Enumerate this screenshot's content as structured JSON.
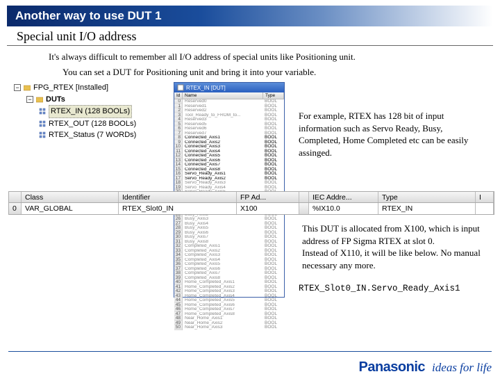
{
  "title": "Another way to use DUT 1",
  "subtitle": "Special unit I/O address",
  "intro1": "It's always difficult to remember all I/O address of special units like Positioning unit.",
  "intro2": "You can set a DUT for Positioning unit and bring it into your variable.",
  "tree": {
    "root": "FPG_RTEX [Installed]",
    "folder": "DUTs",
    "items": [
      "RTEX_IN (128 BOOLs)",
      "RTEX_OUT (128 BOOLs)",
      "RTEX_Status (7 WORDs)"
    ]
  },
  "rtex_window": {
    "title": "RTEX_IN [DUT]",
    "headers": {
      "id": "Id",
      "name": "Name",
      "type": "Type"
    },
    "rows": [
      {
        "n": 0,
        "name": "Reserved0",
        "type": "BOOL",
        "a": 0
      },
      {
        "n": 1,
        "name": "Reserved1",
        "type": "BOOL",
        "a": 0
      },
      {
        "n": 2,
        "name": "Reserved2",
        "type": "BOOL",
        "a": 0
      },
      {
        "n": 3,
        "name": "Tool_Ready_to_FROM_to...",
        "type": "BOOL",
        "a": 0
      },
      {
        "n": 4,
        "name": "Reserved3",
        "type": "BOOL",
        "a": 0
      },
      {
        "n": 5,
        "name": "Reserved5",
        "type": "BOOL",
        "a": 0
      },
      {
        "n": 6,
        "name": "Reserved6",
        "type": "BOOL",
        "a": 0
      },
      {
        "n": 7,
        "name": "Reserved7",
        "type": "BOOL",
        "a": 0
      },
      {
        "n": 8,
        "name": "Connected_Axis1",
        "type": "BOOL",
        "a": 1
      },
      {
        "n": 9,
        "name": "Connected_Axis2",
        "type": "BOOL",
        "a": 1
      },
      {
        "n": 10,
        "name": "Connected_Axis3",
        "type": "BOOL",
        "a": 1
      },
      {
        "n": 11,
        "name": "Connected_Axis4",
        "type": "BOOL",
        "a": 1
      },
      {
        "n": 12,
        "name": "Connected_Axis5",
        "type": "BOOL",
        "a": 1
      },
      {
        "n": 13,
        "name": "Connected_Axis6",
        "type": "BOOL",
        "a": 1
      },
      {
        "n": 14,
        "name": "Connected_Axis7",
        "type": "BOOL",
        "a": 1
      },
      {
        "n": 15,
        "name": "Connected_Axis8",
        "type": "BOOL",
        "a": 1
      },
      {
        "n": 16,
        "name": "Servo_Ready_Axis1",
        "type": "BOOL",
        "a": 1
      },
      {
        "n": 17,
        "name": "Servo_Ready_Axis2",
        "type": "BOOL",
        "a": 1
      },
      {
        "n": 18,
        "name": "Servo_Ready_Axis3",
        "type": "BOOL",
        "a": 0
      },
      {
        "n": 19,
        "name": "Servo_Ready_Axis4",
        "type": "BOOL",
        "a": 0
      },
      {
        "n": 20,
        "name": "Servo_Ready_Axis5",
        "type": "BOOL",
        "a": 0
      },
      {
        "n": 21,
        "name": "Servo_Ready_Axis6",
        "type": "BOOL",
        "a": 0
      },
      {
        "n": 22,
        "name": "Servo_Ready_Axis7",
        "type": "BOOL",
        "a": 0
      },
      {
        "n": 23,
        "name": "Servo_Ready_Axis8",
        "type": "BOOL",
        "a": 0
      },
      {
        "n": 24,
        "name": "Busy_Axis1",
        "type": "BOOL",
        "a": 0
      },
      {
        "n": 25,
        "name": "Busy_Axis2",
        "type": "BOOL",
        "a": 0
      },
      {
        "n": 26,
        "name": "Busy_Axis3",
        "type": "BOOL",
        "a": 0
      },
      {
        "n": 27,
        "name": "Busy_Axis4",
        "type": "BOOL",
        "a": 0
      },
      {
        "n": 28,
        "name": "Busy_Axis5",
        "type": "BOOL",
        "a": 0
      },
      {
        "n": 29,
        "name": "Busy_Axis6",
        "type": "BOOL",
        "a": 0
      },
      {
        "n": 30,
        "name": "Busy_Axis7",
        "type": "BOOL",
        "a": 0
      },
      {
        "n": 31,
        "name": "Busy_Axis8",
        "type": "BOOL",
        "a": 0
      },
      {
        "n": 32,
        "name": "Completed_Axis1",
        "type": "BOOL",
        "a": 0
      },
      {
        "n": 33,
        "name": "Completed_Axis2",
        "type": "BOOL",
        "a": 0
      },
      {
        "n": 34,
        "name": "Completed_Axis3",
        "type": "BOOL",
        "a": 0
      },
      {
        "n": 35,
        "name": "Completed_Axis4",
        "type": "BOOL",
        "a": 0
      },
      {
        "n": 36,
        "name": "Completed_Axis5",
        "type": "BOOL",
        "a": 0
      },
      {
        "n": 37,
        "name": "Completed_Axis6",
        "type": "BOOL",
        "a": 0
      },
      {
        "n": 38,
        "name": "Completed_Axis7",
        "type": "BOOL",
        "a": 0
      },
      {
        "n": 39,
        "name": "Completed_Axis8",
        "type": "BOOL",
        "a": 0
      },
      {
        "n": 40,
        "name": "Home_Completed_Axis1",
        "type": "BOOL",
        "a": 0
      },
      {
        "n": 41,
        "name": "Home_Completed_Axis2",
        "type": "BOOL",
        "a": 0
      },
      {
        "n": 42,
        "name": "Home_Completed_Axis3",
        "type": "BOOL",
        "a": 0
      },
      {
        "n": 43,
        "name": "Home_Completed_Axis4",
        "type": "BOOL",
        "a": 0
      },
      {
        "n": 44,
        "name": "Home_Completed_Axis5",
        "type": "BOOL",
        "a": 0
      },
      {
        "n": 45,
        "name": "Home_Completed_Axis6",
        "type": "BOOL",
        "a": 0
      },
      {
        "n": 46,
        "name": "Home_Completed_Axis7",
        "type": "BOOL",
        "a": 0
      },
      {
        "n": 47,
        "name": "Home_Completed_Axis8",
        "type": "BOOL",
        "a": 0
      },
      {
        "n": 48,
        "name": "Near_Home_Axis1",
        "type": "BOOL",
        "a": 0
      },
      {
        "n": 49,
        "name": "Near_Home_Axis2",
        "type": "BOOL",
        "a": 0
      },
      {
        "n": 50,
        "name": "Near_Home_Axis3",
        "type": "BOOL",
        "a": 0
      }
    ]
  },
  "note_right": "For example, RTEX has 128 bit of input information such as Servo Ready, Busy, Completed, Home Completed etc can be easily assinged.",
  "table_strip": {
    "headers": {
      "col0": "",
      "col1": "Class",
      "col2": "Identifier",
      "col3": "FP Ad...",
      "col4": "IEC Addre...",
      "col5": "Type",
      "col6": "I"
    },
    "row": {
      "col0": "0",
      "col1": "VAR_GLOBAL",
      "col2": "RTEX_Slot0_IN",
      "col3": "X100",
      "col4": "%IX10.0",
      "col5": "RTEX_IN"
    }
  },
  "note_bottom": "This DUT is allocated from X100, which is input address of FP Sigma RTEX at slot 0.\nInstead of X110, it will be like below. No manual necessary any more.",
  "code_line": "RTEX_Slot0_IN.Servo_Ready_Axis1",
  "logo": {
    "brand": "Panasonic",
    "slogan": "ideas for life"
  }
}
